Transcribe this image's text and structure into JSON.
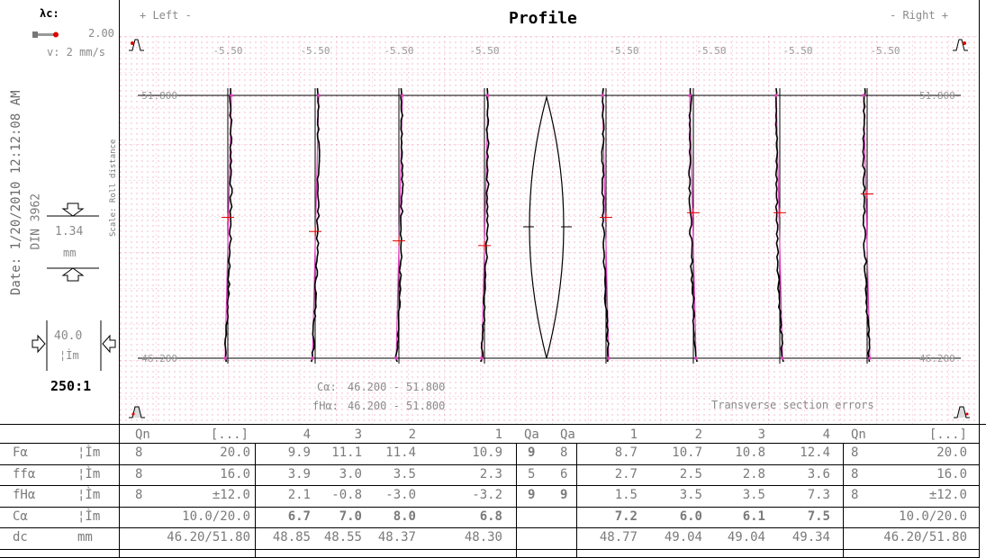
{
  "header": {
    "title": "Profile",
    "left_label": "+ Left -",
    "right_label": "- Right +",
    "lambda_label": "λc:",
    "lambda_value": "2.00",
    "speed_label": "v:  2 mm/s"
  },
  "side": {
    "date_text": "Date: 1/20/2010   12:12:08 AM",
    "standard": "DIN 3962",
    "scale_caption": "Scale: Roll distance",
    "scale_value": "1.34",
    "scale_unit": "mm",
    "amp_value": "40.0",
    "amp_unit": "¦Ìm",
    "ratio": "250:1"
  },
  "chart_data": {
    "type": "line",
    "title": "Profile",
    "ylim": [
      46.2,
      51.8
    ],
    "y_labels": [
      "51.800",
      "46.200"
    ],
    "top_ticks": [
      "-5.50",
      "-5.50",
      "-5.50",
      "-5.50",
      "-5.50",
      "-5.50",
      "-5.50",
      "-5.50"
    ],
    "teeth": [
      {
        "side": "left",
        "index": 4,
        "center_mark": 49.2
      },
      {
        "side": "left",
        "index": 3,
        "center_mark": 48.9
      },
      {
        "side": "left",
        "index": 2,
        "center_mark": 48.7
      },
      {
        "side": "left",
        "index": 1,
        "center_mark": 48.6
      },
      {
        "side": "right",
        "index": 1,
        "center_mark": 49.2
      },
      {
        "side": "right",
        "index": 2,
        "center_mark": 49.3
      },
      {
        "side": "right",
        "index": 3,
        "center_mark": 49.3
      },
      {
        "side": "right",
        "index": 4,
        "center_mark": 49.7
      }
    ],
    "annotations": {
      "c_alpha_label": "Cα:",
      "c_alpha_range": "46.200 - 51.800",
      "fh_alpha_label": "fHα:",
      "fh_alpha_range": "46.200 - 51.800",
      "note": "Transverse section errors"
    }
  },
  "table": {
    "header": [
      "Qn",
      "[...]",
      "4",
      "3",
      "2",
      "1",
      "Qa",
      "Qa",
      "1",
      "2",
      "3",
      "4",
      "Qn",
      "[...]"
    ],
    "rows": [
      {
        "label": "Fα",
        "unit": "¦Ìm",
        "q_left": "8",
        "tol_left": "20.0",
        "left": [
          "9.9",
          "11.1",
          "11.4",
          "10.9"
        ],
        "qa1": "9",
        "qa2": "8",
        "right": [
          "8.7",
          "10.7",
          "10.8",
          "12.4"
        ],
        "q_right": "8",
        "tol_right": "20.0"
      },
      {
        "label": "ffα",
        "unit": "¦Ìm",
        "q_left": "8",
        "tol_left": "16.0",
        "left": [
          "3.9",
          "3.0",
          "3.5",
          "2.3"
        ],
        "qa1": "5",
        "qa2": "6",
        "right": [
          "2.7",
          "2.5",
          "2.8",
          "3.6"
        ],
        "q_right": "8",
        "tol_right": "16.0"
      },
      {
        "label": "fHα",
        "unit": "¦Ìm",
        "q_left": "8",
        "tol_left": "±12.0",
        "left": [
          "2.1",
          "-0.8",
          "-3.0",
          "-3.2"
        ],
        "qa1": "9",
        "qa2": "9",
        "right": [
          "1.5",
          "3.5",
          "3.5",
          "7.3"
        ],
        "q_right": "8",
        "tol_right": "±12.0"
      },
      {
        "label": "Cα",
        "unit": "¦Ìm",
        "q_left": "",
        "tol_left": "10.0/20.0",
        "left": [
          "6.7",
          "7.0",
          "8.0",
          "6.8"
        ],
        "qa1": "",
        "qa2": "",
        "right": [
          "7.2",
          "6.0",
          "6.1",
          "7.5"
        ],
        "q_right": "",
        "tol_right": "10.0/20.0"
      },
      {
        "label": "dc",
        "unit": "mm",
        "q_left": "",
        "tol_left": "46.20/51.80",
        "left": [
          "48.85",
          "48.55",
          "48.37",
          "48.30"
        ],
        "qa1": "",
        "qa2": "",
        "right": [
          "48.77",
          "49.04",
          "49.04",
          "49.34"
        ],
        "q_right": "",
        "tol_right": "46.20/51.80"
      }
    ]
  },
  "colors": {
    "grid": "#f0a0c0",
    "trace": "#000000",
    "nominal": "#e040c0",
    "red": "#e00000",
    "label": "#7a7a7a"
  }
}
